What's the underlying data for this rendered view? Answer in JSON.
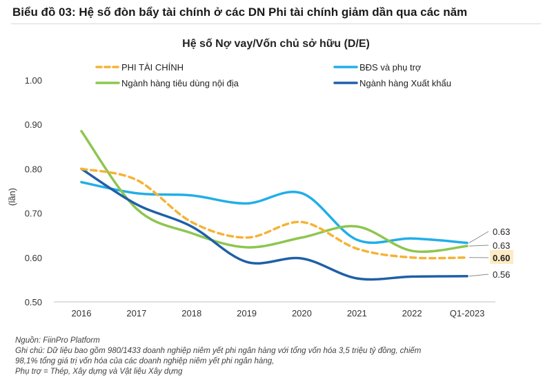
{
  "figure_title": "Biểu đồ 03: Hệ số đòn bẩy tài chính ở các DN Phi tài chính giảm dần qua các năm",
  "chart_data": {
    "type": "line",
    "title": "Hệ số Nợ vay/Vốn chủ sở hữu (D/E)",
    "ylabel": "(lần)",
    "xlabel": "",
    "ylim": [
      0.5,
      1.0
    ],
    "yticks": [
      "1.00",
      "0.90",
      "0.80",
      "0.70",
      "0.60",
      "0.50"
    ],
    "categories": [
      "2016",
      "2017",
      "2018",
      "2019",
      "2020",
      "2021",
      "2022",
      "Q1-2023"
    ],
    "grid": false,
    "legend_position": "top",
    "series": [
      {
        "name": "PHI TÀI CHÍNH",
        "color": "#F5B335",
        "dashed": true,
        "values": [
          0.8,
          0.775,
          0.68,
          0.645,
          0.68,
          0.62,
          0.6,
          0.6
        ]
      },
      {
        "name": "BĐS và phụ trợ",
        "color": "#22AEE8",
        "dashed": false,
        "values": [
          0.77,
          0.745,
          0.74,
          0.722,
          0.745,
          0.64,
          0.643,
          0.633
        ]
      },
      {
        "name": "Ngành hàng tiêu dùng nội địa",
        "color": "#8DC64F",
        "dashed": false,
        "values": [
          0.885,
          0.71,
          0.655,
          0.623,
          0.645,
          0.67,
          0.615,
          0.626
        ]
      },
      {
        "name": "Ngành hàng Xuất khẩu",
        "color": "#1F5FA8",
        "dashed": false,
        "values": [
          0.8,
          0.72,
          0.67,
          0.59,
          0.598,
          0.553,
          0.557,
          0.558
        ]
      }
    ],
    "end_labels": [
      "0.63",
      "0.63",
      "0.60",
      "0.56"
    ],
    "end_label_colors": [
      "#222222",
      "#222222",
      "#222222",
      "#222222"
    ],
    "highlight_label_bg": "#FCEBC4"
  },
  "notes": {
    "source": "Nguồn: FiinPro Platform",
    "line1": "Ghi chú: Dữ liệu bao gồm 980/1433 doanh nghiệp niêm yết phi ngân hàng với tổng vốn hóa 3,5 triệu tỷ đồng, chiếm",
    "line2": "98,1% tổng giá trị vốn hóa của các doanh nghiệp niêm yết phi ngân hàng,",
    "line3": "Phụ trợ = Thép, Xây dựng và Vật liệu Xây dựng"
  }
}
